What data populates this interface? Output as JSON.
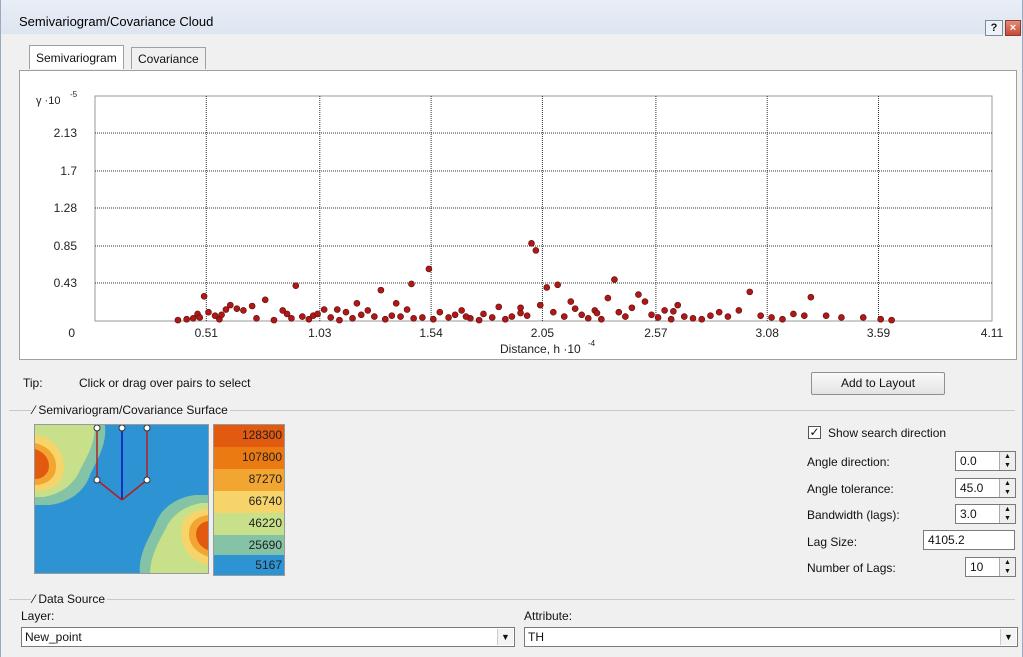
{
  "window": {
    "title": "Semivariogram/Covariance Cloud",
    "help_button": "?",
    "close_button": "×"
  },
  "tabs": [
    {
      "label": "Semivariogram",
      "active": true
    },
    {
      "label": "Covariance",
      "active": false
    }
  ],
  "chart_data": {
    "type": "scatter",
    "ylabel": "γ ·10",
    "ylabel_exponent": "-5",
    "xlabel": "Distance, h ·10",
    "xlabel_exponent": "-4",
    "x_ticks": [
      "0.51",
      "1.03",
      "1.54",
      "2.05",
      "2.57",
      "3.08",
      "3.59",
      "4.11"
    ],
    "y_ticks": [
      "0",
      "0.43",
      "0.85",
      "1.28",
      "1.7",
      "2.13"
    ],
    "y_origin_label": "0",
    "xlim": [
      0,
      4.11
    ],
    "ylim": [
      0,
      2.55
    ],
    "grid": true,
    "point_color": "#b01818",
    "points": [
      [
        0.38,
        0.01
      ],
      [
        0.42,
        0.02
      ],
      [
        0.45,
        0.03
      ],
      [
        0.47,
        0.08
      ],
      [
        0.48,
        0.04
      ],
      [
        0.5,
        0.28
      ],
      [
        0.52,
        0.1
      ],
      [
        0.55,
        0.06
      ],
      [
        0.57,
        0.02
      ],
      [
        0.6,
        0.13
      ],
      [
        0.62,
        0.18
      ],
      [
        0.65,
        0.14
      ],
      [
        0.68,
        0.12
      ],
      [
        0.72,
        0.17
      ],
      [
        0.74,
        0.03
      ],
      [
        0.78,
        0.24
      ],
      [
        0.82,
        0.01
      ],
      [
        0.86,
        0.12
      ],
      [
        0.88,
        0.08
      ],
      [
        0.92,
        0.4
      ],
      [
        0.95,
        0.05
      ],
      [
        0.98,
        0.02
      ],
      [
        1.0,
        0.06
      ],
      [
        1.02,
        0.08
      ],
      [
        1.05,
        0.13
      ],
      [
        1.08,
        0.04
      ],
      [
        1.11,
        0.13
      ],
      [
        1.15,
        0.1
      ],
      [
        1.18,
        0.03
      ],
      [
        1.2,
        0.2
      ],
      [
        1.22,
        0.07
      ],
      [
        1.25,
        0.12
      ],
      [
        1.28,
        0.05
      ],
      [
        1.31,
        0.35
      ],
      [
        1.33,
        0.02
      ],
      [
        1.36,
        0.06
      ],
      [
        1.4,
        0.05
      ],
      [
        1.43,
        0.13
      ],
      [
        1.46,
        0.03
      ],
      [
        1.5,
        0.04
      ],
      [
        1.53,
        0.59
      ],
      [
        1.55,
        0.02
      ],
      [
        1.58,
        0.1
      ],
      [
        1.62,
        0.04
      ],
      [
        1.65,
        0.07
      ],
      [
        1.68,
        0.12
      ],
      [
        1.72,
        0.03
      ],
      [
        1.76,
        0.01
      ],
      [
        1.78,
        0.08
      ],
      [
        1.82,
        0.04
      ],
      [
        1.85,
        0.16
      ],
      [
        1.88,
        0.02
      ],
      [
        1.91,
        0.05
      ],
      [
        1.95,
        0.09
      ],
      [
        1.98,
        0.06
      ],
      [
        2.0,
        0.88
      ],
      [
        2.02,
        0.8
      ],
      [
        2.04,
        0.18
      ],
      [
        2.07,
        0.38
      ],
      [
        2.1,
        0.1
      ],
      [
        2.12,
        0.41
      ],
      [
        2.15,
        0.05
      ],
      [
        2.18,
        0.22
      ],
      [
        2.2,
        0.14
      ],
      [
        2.23,
        0.07
      ],
      [
        2.26,
        0.03
      ],
      [
        2.29,
        0.12
      ],
      [
        2.32,
        0.02
      ],
      [
        2.35,
        0.26
      ],
      [
        2.38,
        0.47
      ],
      [
        2.4,
        0.1
      ],
      [
        2.43,
        0.05
      ],
      [
        2.46,
        0.15
      ],
      [
        2.49,
        0.3
      ],
      [
        2.52,
        0.22
      ],
      [
        2.55,
        0.07
      ],
      [
        2.58,
        0.04
      ],
      [
        2.61,
        0.12
      ],
      [
        2.64,
        0.02
      ],
      [
        2.67,
        0.18
      ],
      [
        2.7,
        0.05
      ],
      [
        2.74,
        0.03
      ],
      [
        2.78,
        0.02
      ],
      [
        2.82,
        0.06
      ],
      [
        2.86,
        0.1
      ],
      [
        2.9,
        0.05
      ],
      [
        2.95,
        0.12
      ],
      [
        3.0,
        0.33
      ],
      [
        3.05,
        0.06
      ],
      [
        3.1,
        0.04
      ],
      [
        3.15,
        0.02
      ],
      [
        3.2,
        0.08
      ],
      [
        3.25,
        0.06
      ],
      [
        3.28,
        0.27
      ],
      [
        3.35,
        0.06
      ],
      [
        3.42,
        0.04
      ],
      [
        3.52,
        0.04
      ],
      [
        3.6,
        0.02
      ],
      [
        3.65,
        0.01
      ],
      [
        1.45,
        0.42
      ],
      [
        1.38,
        0.2
      ],
      [
        0.9,
        0.03
      ],
      [
        1.12,
        0.01
      ],
      [
        1.7,
        0.05
      ],
      [
        2.3,
        0.09
      ],
      [
        2.65,
        0.11
      ],
      [
        0.58,
        0.07
      ],
      [
        1.95,
        0.15
      ]
    ]
  },
  "tip": {
    "label": "Tip:",
    "text": "Click or drag over pairs to select"
  },
  "add_to_layout_label": "Add to Layout",
  "surface": {
    "group_title": "Semivariogram/Covariance Surface",
    "legend": [
      {
        "label": "128300",
        "color": "#e25a10"
      },
      {
        "label": "107800",
        "color": "#ec7a12"
      },
      {
        "label": "87270",
        "color": "#f2a531"
      },
      {
        "label": "66740",
        "color": "#f6d46a"
      },
      {
        "label": "46220",
        "color": "#c9e08a"
      },
      {
        "label": "25690",
        "color": "#84c3a6"
      },
      {
        "label": "5167",
        "color": "#2e93d3"
      }
    ]
  },
  "options": {
    "show_search_direction_label": "Show search direction",
    "show_search_direction_checked": true,
    "angle_direction_label": "Angle direction:",
    "angle_direction_value": "0.0",
    "angle_tolerance_label": "Angle tolerance:",
    "angle_tolerance_value": "45.0",
    "bandwidth_label": "Bandwidth (lags):",
    "bandwidth_value": "3.0",
    "lag_size_label": "Lag Size:",
    "lag_size_value": "4105.2",
    "num_lags_label": "Number of Lags:",
    "num_lags_value": "10"
  },
  "data_source": {
    "group_title": "Data Source",
    "layer_label": "Layer:",
    "layer_value": "New_point",
    "attribute_label": "Attribute:",
    "attribute_value": "TH"
  }
}
